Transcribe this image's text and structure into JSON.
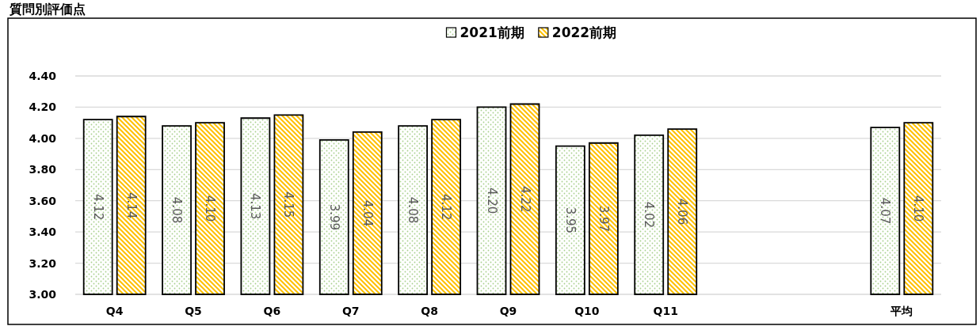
{
  "chart_data": {
    "type": "bar",
    "title": "質問別評価点",
    "categories": [
      "Q4",
      "Q5",
      "Q6",
      "Q7",
      "Q8",
      "Q9",
      "Q10",
      "Q11",
      null,
      null,
      "平均"
    ],
    "series": [
      {
        "name": "2021前期",
        "color": "#a9d18e",
        "values": [
          4.12,
          4.08,
          4.13,
          3.99,
          4.08,
          4.2,
          3.95,
          4.02,
          null,
          null,
          4.07
        ],
        "value_labels": [
          "4.12",
          "4.08",
          "4.13",
          "3.99",
          "4.08",
          "4.20",
          "3.95",
          "4.02",
          null,
          null,
          "4.07"
        ]
      },
      {
        "name": "2022前期",
        "color": "#ffc000",
        "values": [
          4.14,
          4.1,
          4.15,
          4.04,
          4.12,
          4.22,
          3.97,
          4.06,
          null,
          null,
          4.1
        ],
        "value_labels": [
          "4.14",
          "4.10",
          "4.15",
          "4.04",
          "4.12",
          "4.22",
          "3.97",
          "4.06",
          null,
          null,
          "4.10"
        ]
      }
    ],
    "ylim": [
      3.0,
      4.4
    ],
    "yticks": [
      {
        "value": 3.0,
        "label": "3.00"
      },
      {
        "value": 3.2,
        "label": "3.20"
      },
      {
        "value": 3.4,
        "label": "3.40"
      },
      {
        "value": 3.6,
        "label": "3.60"
      },
      {
        "value": 3.8,
        "label": "3.80"
      },
      {
        "value": 4.0,
        "label": "4.00"
      },
      {
        "value": 4.2,
        "label": "4.20"
      },
      {
        "value": 4.4,
        "label": "4.40"
      }
    ],
    "grid": "y",
    "legend": "top"
  }
}
